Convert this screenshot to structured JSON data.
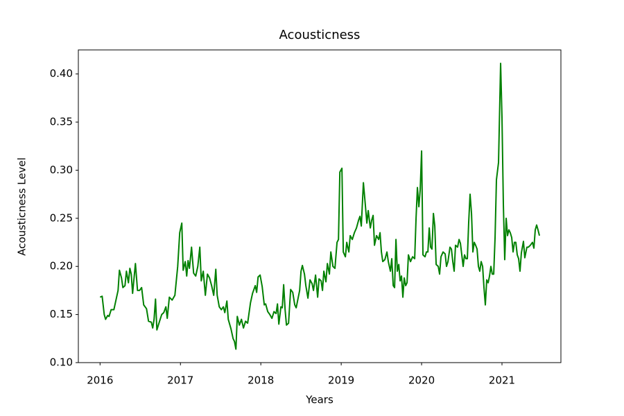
{
  "chart_data": {
    "type": "line",
    "title": "Acousticness",
    "xlabel": "Years",
    "ylabel": "Acousticness Level",
    "color": "#008000",
    "xlim": [
      2015.73,
      2021.733
    ],
    "xticks": [
      2016,
      2017,
      2018,
      2019,
      2020,
      2021
    ],
    "ylim": [
      0.1,
      0.425
    ],
    "yticks": [
      {
        "value": 0.1,
        "label": "0.10"
      },
      0.15,
      {
        "value": 0.2,
        "label": "0.20"
      },
      0.25,
      {
        "value": 0.3,
        "label": "0.30"
      },
      0.35,
      {
        "value": 0.4,
        "label": "0.40"
      }
    ],
    "x": [
      2016.0,
      2016.026,
      2016.052,
      2016.069,
      2016.095,
      2016.112,
      2016.138,
      2016.172,
      2016.198,
      2016.224,
      2016.241,
      2016.267,
      2016.284,
      2016.31,
      2016.328,
      2016.353,
      2016.371,
      2016.388,
      2016.405,
      2016.44,
      2016.466,
      2016.491,
      2016.517,
      2016.543,
      2016.578,
      2016.603,
      2016.638,
      2016.655,
      2016.672,
      2016.69,
      2016.707,
      2016.733,
      2016.767,
      2016.793,
      2016.819,
      2016.836,
      2016.862,
      2016.897,
      2016.931,
      2016.966,
      2016.991,
      2017.017,
      2017.034,
      2017.06,
      2017.078,
      2017.095,
      2017.112,
      2017.138,
      2017.164,
      2017.19,
      2017.216,
      2017.241,
      2017.259,
      2017.284,
      2017.31,
      2017.336,
      2017.362,
      2017.388,
      2017.414,
      2017.44,
      2017.457,
      2017.483,
      2017.509,
      2017.534,
      2017.552,
      2017.578,
      2017.595,
      2017.629,
      2017.655,
      2017.672,
      2017.69,
      2017.707,
      2017.733,
      2017.759,
      2017.784,
      2017.81,
      2017.836,
      2017.871,
      2017.897,
      2017.931,
      2017.948,
      2017.966,
      2017.991,
      2018.017,
      2018.043,
      2018.06,
      2018.086,
      2018.112,
      2018.138,
      2018.164,
      2018.19,
      2018.207,
      2018.224,
      2018.25,
      2018.267,
      2018.284,
      2018.302,
      2018.319,
      2018.345,
      2018.371,
      2018.397,
      2018.422,
      2018.44,
      2018.466,
      2018.483,
      2018.5,
      2018.517,
      2018.543,
      2018.56,
      2018.586,
      2018.612,
      2018.638,
      2018.655,
      2018.681,
      2018.707,
      2018.724,
      2018.75,
      2018.767,
      2018.784,
      2018.81,
      2018.828,
      2018.853,
      2018.871,
      2018.897,
      2018.922,
      2018.948,
      2018.966,
      2018.983,
      2019.009,
      2019.026,
      2019.052,
      2019.069,
      2019.095,
      2019.112,
      2019.138,
      2019.164,
      2019.19,
      2019.216,
      2019.233,
      2019.25,
      2019.276,
      2019.302,
      2019.319,
      2019.336,
      2019.362,
      2019.379,
      2019.397,
      2019.414,
      2019.44,
      2019.466,
      2019.483,
      2019.5,
      2019.517,
      2019.543,
      2019.569,
      2019.586,
      2019.612,
      2019.629,
      2019.647,
      2019.664,
      2019.681,
      2019.698,
      2019.716,
      2019.733,
      2019.75,
      2019.767,
      2019.784,
      2019.802,
      2019.819,
      2019.836,
      2019.862,
      2019.888,
      2019.914,
      2019.931,
      2019.948,
      2019.966,
      2019.983,
      2020.0,
      2020.017,
      2020.043,
      2020.06,
      2020.078,
      2020.095,
      2020.112,
      2020.129,
      2020.147,
      2020.164,
      2020.181,
      2020.207,
      2020.224,
      2020.241,
      2020.267,
      2020.293,
      2020.31,
      2020.328,
      2020.353,
      2020.371,
      2020.388,
      2020.405,
      2020.422,
      2020.448,
      2020.466,
      2020.483,
      2020.5,
      2020.517,
      2020.534,
      2020.552,
      2020.569,
      2020.586,
      2020.603,
      2020.621,
      2020.638,
      2020.655,
      2020.672,
      2020.69,
      2020.707,
      2020.724,
      2020.741,
      2020.759,
      2020.776,
      2020.793,
      2020.81,
      2020.828,
      2020.845,
      2020.862,
      2020.879,
      2020.897,
      2020.914,
      2020.931,
      2020.957,
      2020.983,
      2021.0,
      2021.017,
      2021.034,
      2021.052,
      2021.069,
      2021.086,
      2021.103,
      2021.121,
      2021.138,
      2021.155,
      2021.172,
      2021.19,
      2021.207,
      2021.224,
      2021.241,
      2021.267,
      2021.284,
      2021.31,
      2021.328,
      2021.353,
      2021.379,
      2021.397,
      2021.414,
      2021.431,
      2021.448,
      2021.466
    ],
    "values": [
      0.168,
      0.169,
      0.15,
      0.145,
      0.149,
      0.148,
      0.155,
      0.155,
      0.165,
      0.175,
      0.196,
      0.188,
      0.178,
      0.18,
      0.195,
      0.183,
      0.198,
      0.192,
      0.172,
      0.203,
      0.175,
      0.175,
      0.178,
      0.16,
      0.156,
      0.143,
      0.142,
      0.136,
      0.145,
      0.166,
      0.134,
      0.141,
      0.15,
      0.152,
      0.158,
      0.146,
      0.168,
      0.165,
      0.17,
      0.2,
      0.235,
      0.245,
      0.196,
      0.205,
      0.19,
      0.206,
      0.198,
      0.22,
      0.193,
      0.19,
      0.2,
      0.22,
      0.185,
      0.195,
      0.17,
      0.192,
      0.188,
      0.18,
      0.17,
      0.197,
      0.17,
      0.158,
      0.155,
      0.158,
      0.152,
      0.164,
      0.145,
      0.135,
      0.125,
      0.122,
      0.114,
      0.148,
      0.139,
      0.145,
      0.136,
      0.143,
      0.141,
      0.162,
      0.172,
      0.18,
      0.173,
      0.189,
      0.191,
      0.179,
      0.16,
      0.161,
      0.153,
      0.15,
      0.146,
      0.153,
      0.151,
      0.161,
      0.14,
      0.158,
      0.157,
      0.181,
      0.155,
      0.139,
      0.141,
      0.176,
      0.173,
      0.16,
      0.157,
      0.168,
      0.175,
      0.195,
      0.201,
      0.192,
      0.18,
      0.167,
      0.186,
      0.182,
      0.175,
      0.191,
      0.168,
      0.187,
      0.185,
      0.175,
      0.195,
      0.184,
      0.203,
      0.192,
      0.215,
      0.2,
      0.198,
      0.225,
      0.228,
      0.298,
      0.302,
      0.215,
      0.21,
      0.225,
      0.215,
      0.232,
      0.228,
      0.235,
      0.24,
      0.248,
      0.252,
      0.242,
      0.287,
      0.262,
      0.245,
      0.258,
      0.24,
      0.248,
      0.253,
      0.222,
      0.232,
      0.228,
      0.235,
      0.215,
      0.205,
      0.207,
      0.215,
      0.205,
      0.195,
      0.208,
      0.18,
      0.178,
      0.228,
      0.195,
      0.202,
      0.185,
      0.19,
      0.168,
      0.188,
      0.18,
      0.183,
      0.212,
      0.205,
      0.21,
      0.208,
      0.25,
      0.282,
      0.262,
      0.28,
      0.32,
      0.212,
      0.21,
      0.215,
      0.215,
      0.24,
      0.22,
      0.218,
      0.255,
      0.242,
      0.202,
      0.2,
      0.192,
      0.21,
      0.215,
      0.213,
      0.2,
      0.205,
      0.22,
      0.218,
      0.205,
      0.195,
      0.222,
      0.22,
      0.228,
      0.224,
      0.212,
      0.2,
      0.212,
      0.208,
      0.208,
      0.246,
      0.275,
      0.255,
      0.215,
      0.225,
      0.222,
      0.218,
      0.2,
      0.195,
      0.205,
      0.2,
      0.178,
      0.16,
      0.186,
      0.183,
      0.19,
      0.2,
      0.192,
      0.192,
      0.23,
      0.29,
      0.308,
      0.411,
      0.355,
      0.265,
      0.207,
      0.25,
      0.232,
      0.238,
      0.235,
      0.23,
      0.215,
      0.225,
      0.225,
      0.212,
      0.208,
      0.195,
      0.214,
      0.226,
      0.209,
      0.22,
      0.22,
      0.222,
      0.225,
      0.219,
      0.238,
      0.243,
      0.238,
      0.232
    ]
  }
}
